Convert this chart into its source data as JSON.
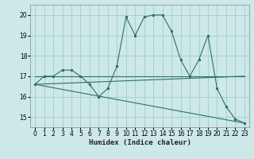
{
  "xlabel": "Humidex (Indice chaleur)",
  "bg_color": "#cce8e8",
  "line_color": "#2d7068",
  "grid_color": "#aacfcf",
  "xlim": [
    -0.5,
    23.5
  ],
  "ylim": [
    14.5,
    20.5
  ],
  "yticks": [
    15,
    16,
    17,
    18,
    19,
    20
  ],
  "xticks": [
    0,
    1,
    2,
    3,
    4,
    5,
    6,
    7,
    8,
    9,
    10,
    11,
    12,
    13,
    14,
    15,
    16,
    17,
    18,
    19,
    20,
    21,
    22,
    23
  ],
  "series_main": {
    "x": [
      0,
      1,
      2,
      3,
      4,
      5,
      6,
      7,
      8,
      9,
      10,
      11,
      12,
      13,
      14,
      15,
      16,
      17,
      18,
      19,
      20,
      21,
      22,
      23
    ],
    "y": [
      16.6,
      17.0,
      17.0,
      17.3,
      17.3,
      17.0,
      16.6,
      16.0,
      16.4,
      17.5,
      19.9,
      19.0,
      19.9,
      20.0,
      20.0,
      19.2,
      17.8,
      17.0,
      17.8,
      19.0,
      16.4,
      15.5,
      14.9,
      14.7
    ]
  },
  "series_lines": [
    {
      "x": [
        0,
        23
      ],
      "y": [
        16.6,
        17.0
      ]
    },
    {
      "x": [
        0,
        23
      ],
      "y": [
        16.6,
        14.7
      ]
    },
    {
      "x": [
        0,
        23
      ],
      "y": [
        17.0,
        17.0
      ]
    }
  ],
  "tick_fontsize": 5.5,
  "xlabel_fontsize": 6.5
}
